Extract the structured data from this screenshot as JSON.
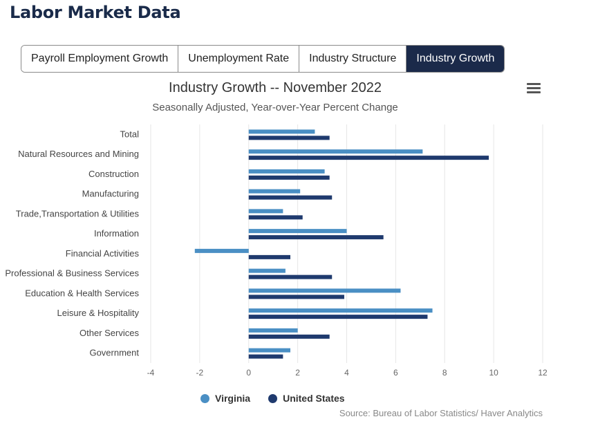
{
  "page": {
    "title": "Labor Market Data"
  },
  "tabs": [
    {
      "label": "Payroll Employment Growth",
      "active": false
    },
    {
      "label": "Unemployment Rate",
      "active": false
    },
    {
      "label": "Industry Structure",
      "active": false
    },
    {
      "label": "Industry Growth",
      "active": true
    }
  ],
  "chart_menu": {
    "icon": "hamburger-menu-icon"
  },
  "colors": {
    "virginia": "#4a8fc4",
    "united_states": "#1f3a6e",
    "active_tab": "#1b2a4a",
    "grid": "#e6e6e6"
  },
  "chart_data": {
    "type": "bar",
    "orientation": "horizontal",
    "title": "Industry Growth -- November 2022",
    "subtitle": "Seasonally Adjusted, Year-over-Year Percent Change",
    "categories": [
      "Total",
      "Natural Resources and Mining",
      "Construction",
      "Manufacturing",
      "Trade,Transportation & Utilities",
      "Information",
      "Financial Activities",
      "Professional & Business Services",
      "Education & Health Services",
      "Leisure & Hospitality",
      "Other Services",
      "Government"
    ],
    "series": [
      {
        "name": "Virginia",
        "color": "#4a8fc4",
        "values": [
          2.7,
          7.1,
          3.1,
          2.1,
          1.4,
          4.0,
          -2.2,
          1.5,
          6.2,
          7.5,
          2.0,
          1.7
        ]
      },
      {
        "name": "United States",
        "color": "#1f3a6e",
        "values": [
          3.3,
          9.8,
          3.3,
          3.4,
          2.2,
          5.5,
          1.7,
          3.4,
          3.9,
          7.3,
          3.3,
          1.4
        ]
      }
    ],
    "xlim": [
      -4,
      12
    ],
    "xticks": [
      -4,
      -2,
      0,
      2,
      4,
      6,
      8,
      10,
      12
    ],
    "grid": true,
    "legend_position": "bottom"
  },
  "source": "Source: Bureau of Labor Statistics/ Haver Analytics"
}
